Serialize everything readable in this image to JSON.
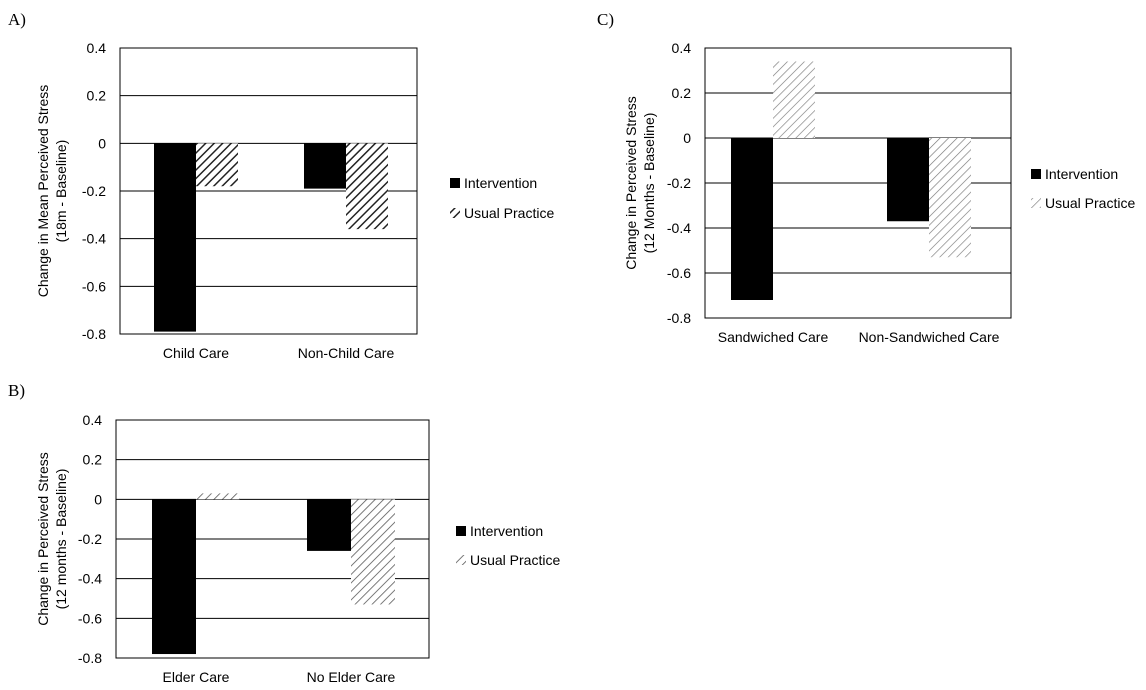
{
  "figure": {
    "panels": [
      {
        "id": "A",
        "label": "A)"
      },
      {
        "id": "B",
        "label": "B)"
      },
      {
        "id": "C",
        "label": "C)"
      }
    ]
  },
  "chart_data": [
    {
      "panel": "A)",
      "type": "bar",
      "categories": [
        "Child Care",
        "Non-Child Care"
      ],
      "series": [
        {
          "name": "Intervention",
          "values": [
            -0.79,
            -0.19
          ]
        },
        {
          "name": "Usual Practice",
          "values": [
            -0.18,
            -0.36
          ]
        }
      ],
      "ylabel": [
        "Change in Mean Perceived Stress",
        "(18m - Baseline)"
      ],
      "ylim": [
        -0.8,
        0.4
      ],
      "yticks": [
        0.4,
        0.2,
        0,
        -0.2,
        -0.4,
        -0.6,
        -0.8
      ],
      "ytick_labels": [
        "0.4",
        "0.2",
        "0",
        "-0.2",
        "-0.4",
        "-0.6",
        "-0.8"
      ],
      "grid": true,
      "legend": "right"
    },
    {
      "panel": "B)",
      "type": "bar",
      "categories": [
        "Elder Care",
        "No Elder Care"
      ],
      "series": [
        {
          "name": "Intervention",
          "values": [
            -0.78,
            -0.26
          ]
        },
        {
          "name": "Usual Practice",
          "values": [
            0.03,
            -0.53
          ]
        }
      ],
      "ylabel": [
        "Change in Perceived Stress",
        "(12 months - Baseline)"
      ],
      "ylim": [
        -0.8,
        0.4
      ],
      "yticks": [
        0.4,
        0.2,
        0,
        -0.2,
        -0.4,
        -0.6,
        -0.8
      ],
      "ytick_labels": [
        "0.4",
        "0.2",
        "0",
        "-0.2",
        "-0.4",
        "-0.6",
        "-0.8"
      ],
      "grid": true,
      "legend": "right"
    },
    {
      "panel": "C)",
      "type": "bar",
      "categories": [
        "Sandwiched Care",
        "Non-Sandwiched Care"
      ],
      "series": [
        {
          "name": "Intervention",
          "values": [
            -0.72,
            -0.37
          ]
        },
        {
          "name": "Usual Practice",
          "values": [
            0.34,
            -0.53
          ]
        }
      ],
      "ylabel": [
        "Change in Perceived Stress",
        "(12 Months - Baseline)"
      ],
      "ylim": [
        -0.8,
        0.4
      ],
      "yticks": [
        0.4,
        0.2,
        0,
        -0.2,
        -0.4,
        -0.6,
        -0.8
      ],
      "ytick_labels": [
        "0.4",
        "0.2",
        "0",
        "-0.2",
        "-0.4",
        "-0.6",
        "-0.8"
      ],
      "grid": true,
      "legend": "right"
    }
  ],
  "colors": {
    "intervention": "#000000",
    "usual_practice_stroke_a": "#222222",
    "usual_practice_stroke_b": "#555555",
    "usual_practice_stroke_c": "#777777",
    "grid": "#000000"
  }
}
